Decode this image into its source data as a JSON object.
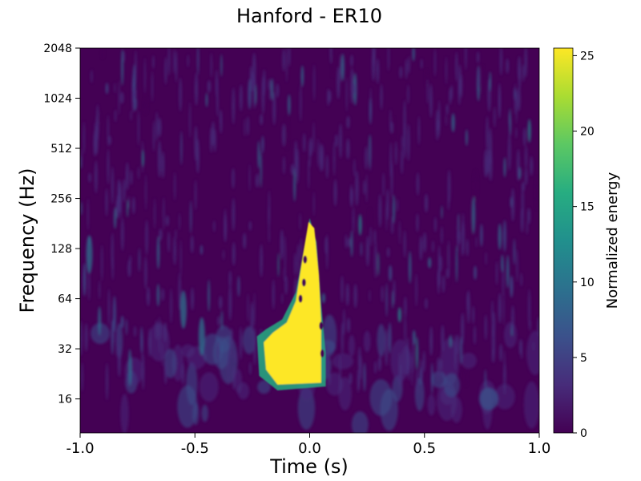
{
  "chart_data": {
    "type": "heatmap",
    "title": "Hanford - ER10",
    "xlabel": "Time (s)",
    "ylabel": "Frequency (Hz)",
    "xlim": [
      -1.0,
      1.0
    ],
    "ylim": [
      10,
      2048
    ],
    "yscale": "log2",
    "grid": false,
    "x_ticks": [
      -1.0,
      -0.5,
      0.0,
      0.5,
      1.0
    ],
    "x_tick_labels": [
      "-1.0",
      "-0.5",
      "0.0",
      "0.5",
      "1.0"
    ],
    "y_ticks": [
      16,
      32,
      64,
      128,
      256,
      512,
      1024,
      2048
    ],
    "y_tick_labels": [
      "16",
      "32",
      "64",
      "128",
      "256",
      "512",
      "1024",
      "2048"
    ],
    "colorbar": {
      "label": "Normalized energy",
      "range": [
        0,
        25.5
      ],
      "ticks": [
        0,
        5,
        10,
        15,
        20,
        25
      ],
      "tick_labels": [
        "0",
        "5",
        "10",
        "15",
        "20",
        "25"
      ],
      "colormap": "viridis",
      "colors": [
        "#440154",
        "#472c7a",
        "#3b518b",
        "#2c718e",
        "#21908d",
        "#27ad81",
        "#5cc863",
        "#aadc32",
        "#fde725"
      ]
    },
    "features": [
      {
        "name": "chirp-signal",
        "shape": "triangle",
        "t_range": [
          -0.2,
          0.05
        ],
        "f_range": [
          18,
          190
        ],
        "level": 25.5
      }
    ]
  }
}
